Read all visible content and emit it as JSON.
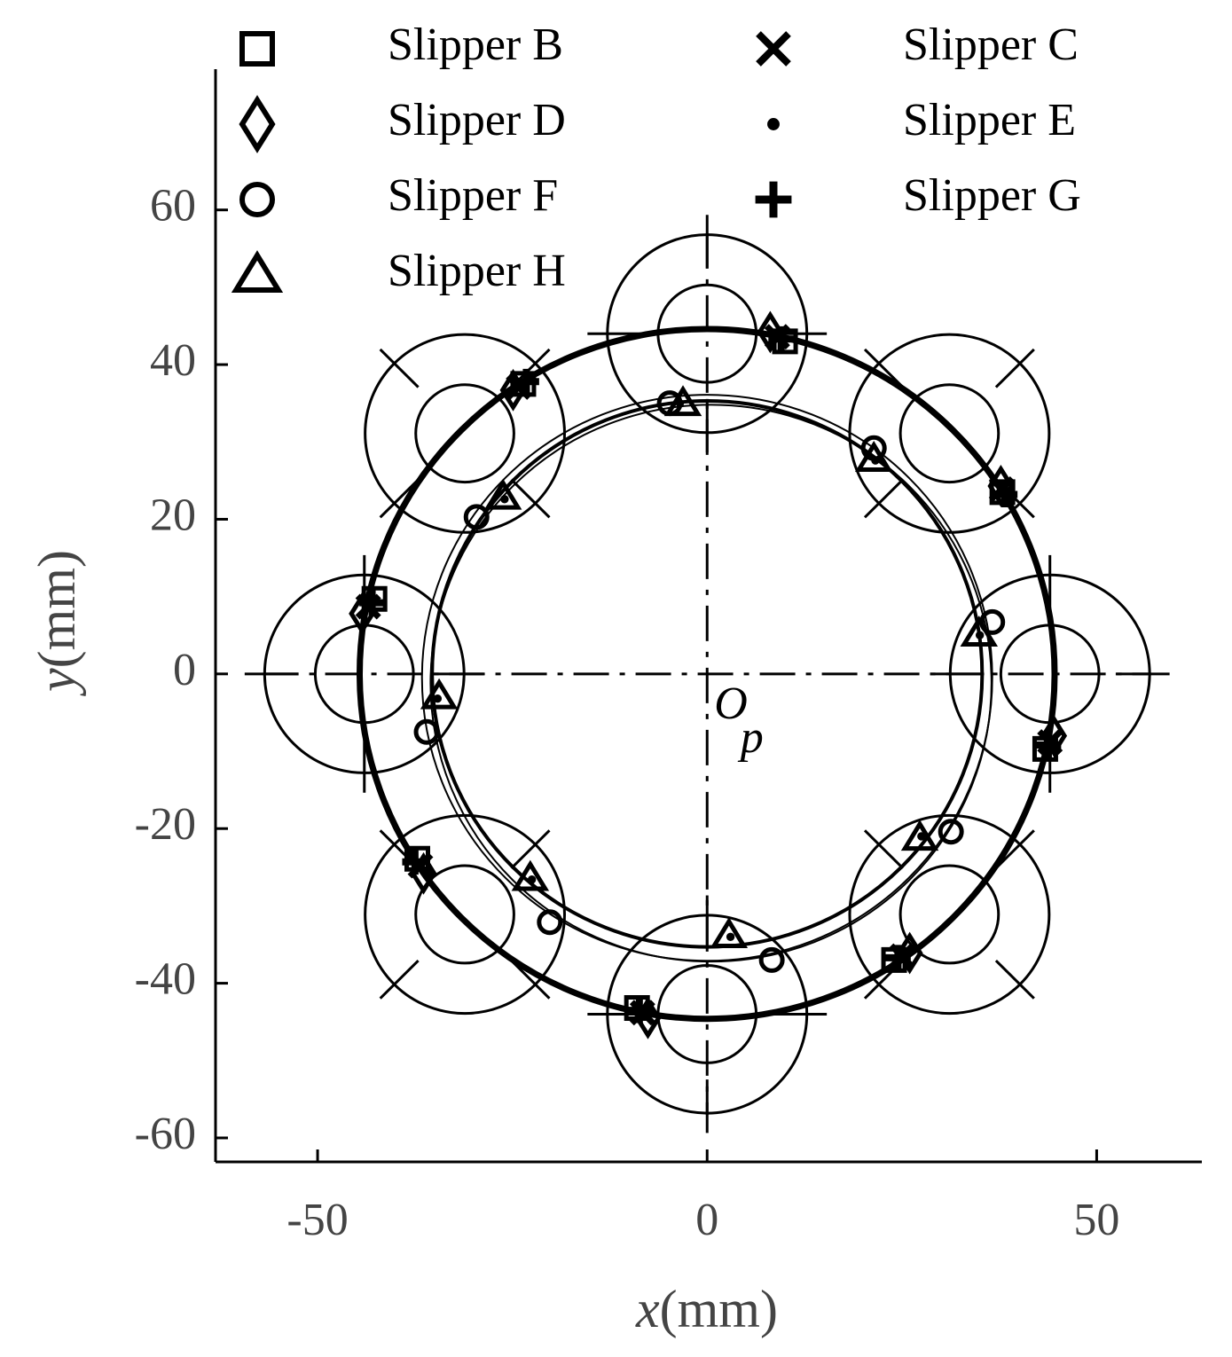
{
  "chart_data": {
    "type": "scatter",
    "xlabel": {
      "symbol": "x",
      "unit": "(mm)"
    },
    "ylabel": {
      "symbol": "y",
      "unit": "(mm)"
    },
    "annotation": {
      "text": "O",
      "subscript": "p",
      "x": 0,
      "y": 0
    },
    "xlim": [
      -63.1,
      63.5
    ],
    "ylim": [
      -63.1,
      78.2
    ],
    "xticks": [
      -50,
      0,
      50
    ],
    "yticks": [
      -60,
      -40,
      -20,
      0,
      20,
      40,
      60
    ],
    "bore_centers": [
      [
        0,
        44
      ],
      [
        31.1,
        31.1
      ],
      [
        44,
        0
      ],
      [
        31.1,
        -31.1
      ],
      [
        0,
        -44
      ],
      [
        -31.1,
        -31.1
      ],
      [
        -44,
        0
      ],
      [
        -31.1,
        31.1
      ]
    ],
    "bore_radii": [
      6.3,
      12.8
    ],
    "trajectories": [
      {
        "cx": 0,
        "cy": 0,
        "r": 44.6
      },
      {
        "cx": 0,
        "cy": 0,
        "r": 35.3
      },
      {
        "cx": 0.5,
        "cy": -1.2,
        "r": 36.0
      },
      {
        "cx": 0,
        "cy": -0.5,
        "r": 36.6
      }
    ],
    "series": [
      {
        "name": "Slipper B",
        "marker": "square",
        "color": "#000",
        "x": [
          10.0,
          -23.6,
          37.9,
          -42.7,
          43.4,
          -37.2,
          24.0,
          -9.0
        ],
        "values": [
          43.0,
          37.5,
          23.5,
          9.7,
          -9.7,
          -23.9,
          -37.0,
          -43.2
        ]
      },
      {
        "name": "Slipper C",
        "marker": "x",
        "color": "#000",
        "x": [
          9.0,
          -24.2,
          37.8,
          -43.5,
          44.0,
          -36.8,
          25.0,
          -8.3
        ],
        "values": [
          43.6,
          37.1,
          23.9,
          8.7,
          -8.8,
          -24.8,
          -36.5,
          -43.8
        ]
      },
      {
        "name": "Slipper D",
        "marker": "diamond",
        "color": "#000",
        "x": [
          8.1,
          -24.9,
          37.7,
          -44.3,
          44.5,
          -36.4,
          26.0,
          -7.6
        ],
        "values": [
          44.2,
          36.7,
          24.3,
          7.8,
          -8.0,
          -25.8,
          -36.1,
          -44.5
        ]
      },
      {
        "name": "Slipper E",
        "marker": "dot",
        "color": "#000",
        "x": [
          -3.5,
          -26.0,
          21.6,
          35.0,
          -34.6,
          27.5,
          -22.5,
          3.0
        ],
        "values": [
          35.0,
          22.6,
          27.6,
          5.0,
          -3.2,
          -21.0,
          -26.6,
          -34.0
        ]
      },
      {
        "name": "Slipper F",
        "marker": "circle",
        "color": "#000",
        "x": [
          -4.8,
          -29.6,
          21.4,
          36.6,
          -36.0,
          31.3,
          -20.2,
          8.3
        ],
        "values": [
          35.0,
          20.3,
          29.2,
          6.7,
          -7.5,
          -20.4,
          -32.1,
          -37.0
        ]
      },
      {
        "name": "Slipper G",
        "marker": "plus",
        "color": "#000",
        "x": [
          9.5,
          -23.2,
          38.2,
          -43.0,
          43.8,
          -37.5,
          24.5,
          -8.7
        ],
        "values": [
          43.3,
          37.8,
          23.2,
          9.2,
          -9.2,
          -24.3,
          -36.7,
          -43.5
        ]
      },
      {
        "name": "Slipper H",
        "marker": "triangle",
        "color": "#000",
        "x": [
          -3.1,
          -26.2,
          21.4,
          34.9,
          -34.4,
          27.3,
          -22.7,
          2.8
        ],
        "values": [
          35.0,
          22.9,
          27.8,
          5.2,
          -2.9,
          -21.2,
          -26.4,
          -33.8
        ]
      }
    ]
  }
}
